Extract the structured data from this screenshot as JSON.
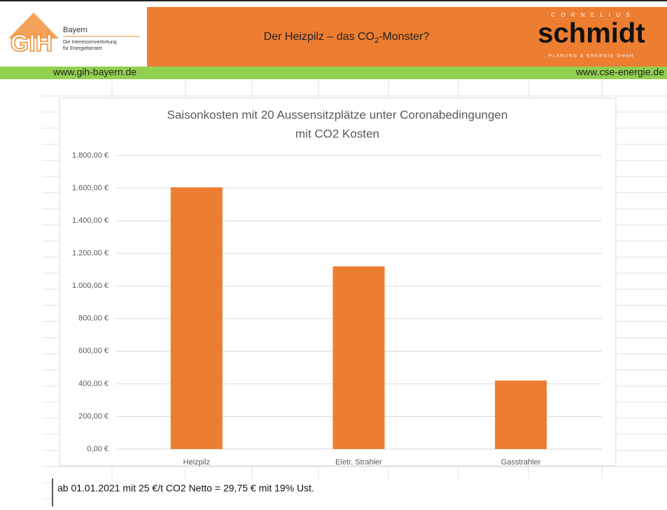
{
  "header": {
    "title_parts": [
      "Der Heizpilz – das CO",
      "2",
      "-Monster?"
    ],
    "logo_left": {
      "mark": "GIH",
      "region": "Bayern",
      "line1": "Die Interessenvertretung",
      "line2": "für Energieberater"
    },
    "logo_right": {
      "top": "C O R N E L I U S",
      "name": "schmidt",
      "bottom": "PLANUNG & ENERGIE GmbH"
    },
    "link_left": "www.gih-bayern.de",
    "link_right": "www.cse-energie.de"
  },
  "footer": {
    "note": "ab 01.01.2021 mit 25 €/t CO2 Netto = 29,75 € mit 19% Ust."
  },
  "chart_data": {
    "type": "bar",
    "title": [
      "Saisonkosten mit 20 Aussensitzplätze unter Coronabedingungen",
      "mit CO2 Kosten"
    ],
    "categories": [
      "Heizpilz",
      "Eletr. Strahler",
      "Gasstrahler"
    ],
    "values": [
      1605,
      1120,
      420
    ],
    "color": "#ed7d31",
    "ylim": [
      0,
      1800
    ],
    "yticks": [
      {
        "value": 0,
        "label": "0,00 €"
      },
      {
        "value": 200,
        "label": "200,00 €"
      },
      {
        "value": 400,
        "label": "400,00 €"
      },
      {
        "value": 600,
        "label": "600,00 €"
      },
      {
        "value": 800,
        "label": "800,00 €"
      },
      {
        "value": 1000,
        "label": "1.000,00 €"
      },
      {
        "value": 1200,
        "label": "1.200,00 €"
      },
      {
        "value": 1400,
        "label": "1.400,00 €"
      },
      {
        "value": 1600,
        "label": "1.600,00 €"
      },
      {
        "value": 1800,
        "label": "1.800,00 €"
      }
    ],
    "grid": true
  }
}
